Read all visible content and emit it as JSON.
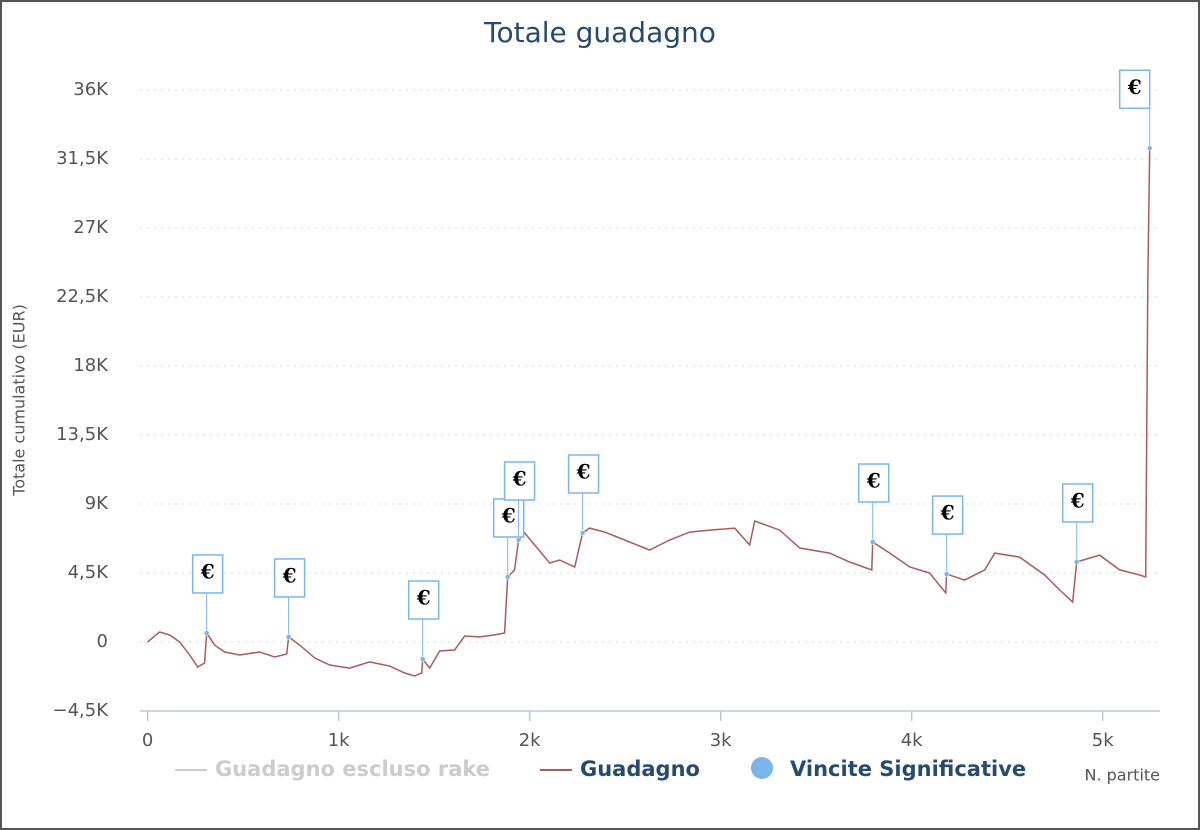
{
  "chart_data": {
    "type": "line",
    "title": "Totale guadagno",
    "y_label": "Totale cumulativo (EUR)",
    "x_label": "N. partite",
    "xlim": [
      -40,
      5300
    ],
    "ylim": [
      -4500,
      36000
    ],
    "xticks": [
      0,
      {
        "value": 1000,
        "label": "1k"
      },
      {
        "value": 2000,
        "label": "2k"
      },
      {
        "value": 3000,
        "label": "3k"
      },
      {
        "value": 4000,
        "label": "4k"
      },
      {
        "value": 5000,
        "label": "5k"
      }
    ],
    "yticks": [
      {
        "value": -4500,
        "label": "−4,5K"
      },
      0,
      {
        "value": 4500,
        "label": "4,5K"
      },
      {
        "value": 9000,
        "label": "9K"
      },
      {
        "value": 13500,
        "label": "13,5K"
      },
      {
        "value": 18000,
        "label": "18K"
      },
      {
        "value": 22500,
        "label": "22,5K"
      },
      {
        "value": 27000,
        "label": "27K"
      },
      {
        "value": 31500,
        "label": "31,5K"
      },
      {
        "value": 36000,
        "label": "36K"
      }
    ],
    "grid": true,
    "series": [
      {
        "name": "Guadagno escluso rake",
        "color": "#cccccc",
        "hidden": true
      },
      {
        "name": "Guadagno",
        "color": "#a85c5c",
        "x": [
          0,
          37,
          63,
          115,
          168,
          220,
          262,
          298,
          309,
          351,
          403,
          482,
          586,
          665,
          728,
          738,
          796,
          874,
          953,
          1058,
          1162,
          1267,
          1346,
          1398,
          1435,
          1440,
          1476,
          1529,
          1607,
          1660,
          1738,
          1817,
          1869,
          1885,
          1921,
          1942,
          1974,
          2026,
          2105,
          2157,
          2236,
          2277,
          2314,
          2393,
          2471,
          2628,
          2733,
          2838,
          2942,
          3073,
          3152,
          3178,
          3309,
          3414,
          3571,
          3675,
          3791,
          3796,
          3885,
          3990,
          4094,
          4178,
          4183,
          4277,
          4382,
          4435,
          4565,
          4696,
          4775,
          4843,
          4864,
          4984,
          5089,
          5194,
          5225,
          5236,
          5246
        ],
        "values": [
          0,
          390,
          650,
          460,
          0,
          -850,
          -1630,
          -1370,
          590,
          -200,
          -650,
          -850,
          -650,
          -980,
          -780,
          330,
          -200,
          -1040,
          -1500,
          -1700,
          -1300,
          -1570,
          -2020,
          -2220,
          -2020,
          -1110,
          -1700,
          -590,
          -520,
          390,
          330,
          460,
          590,
          4240,
          4700,
          6650,
          7110,
          6330,
          5150,
          5350,
          4890,
          7110,
          7430,
          7170,
          6780,
          6000,
          6650,
          7170,
          7300,
          7430,
          6330,
          7890,
          7300,
          6130,
          5800,
          5220,
          4700,
          6520,
          5800,
          4890,
          4500,
          3200,
          4430,
          4040,
          4700,
          5800,
          5540,
          4370,
          3390,
          2610,
          5220,
          5670,
          4700,
          4370,
          4240,
          23400,
          32200
        ]
      },
      {
        "name": "Vincite Significative",
        "color": "#7cb5ec",
        "label": "€",
        "x": [
          309,
          738,
          1440,
          1885,
          1942,
          2277,
          3796,
          4183,
          4864,
          5246
        ],
        "values": [
          590,
          330,
          -1110,
          4240,
          6650,
          7110,
          6520,
          4430,
          5220,
          32200
        ]
      }
    ]
  }
}
